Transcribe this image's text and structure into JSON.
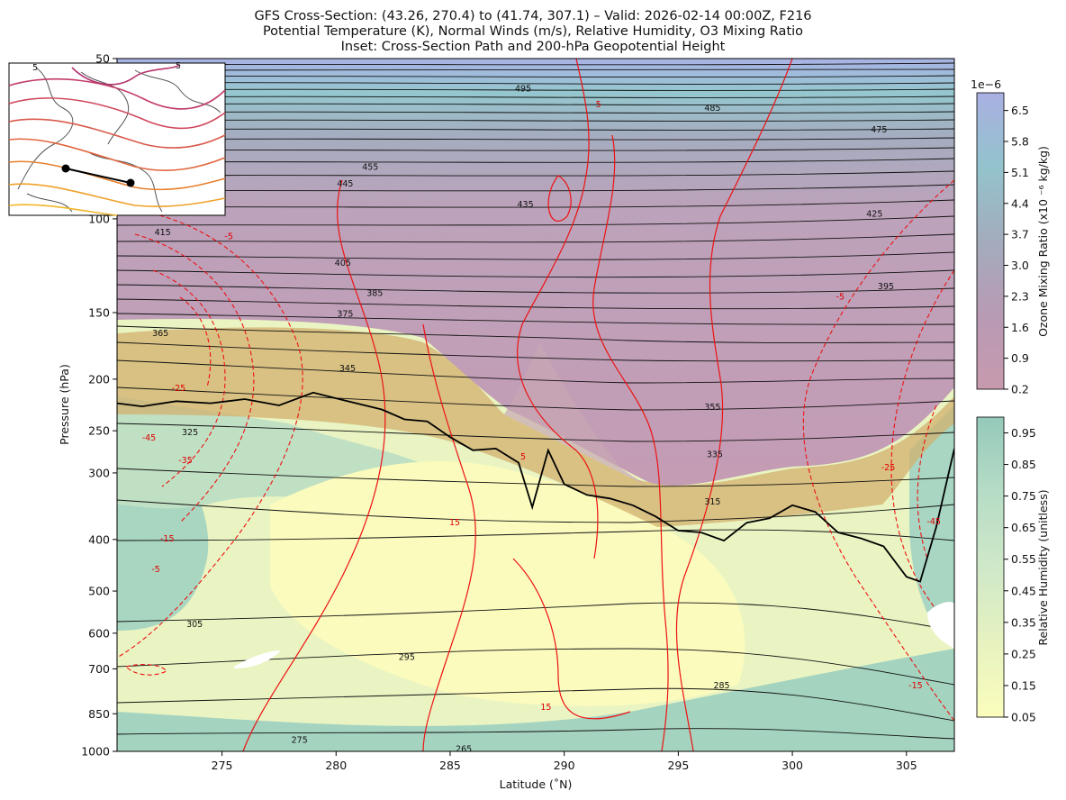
{
  "title": {
    "line1": "GFS Cross-Section: (43.26, 270.4) to (41.74, 307.1) – Valid: 2026-02-14 00:00Z, F216",
    "line2": "Potential Temperature (K), Normal Winds (m/s), Relative Humidity, O3 Mixing Ratio",
    "line3": "Inset: Cross-Section Path and 200-hPa Geopotential Height"
  },
  "chart_data": {
    "type": "heatmap",
    "xlabel": "Latitude (˚N)",
    "ylabel": "Pressure (hPa)",
    "xlim": [
      270.4,
      307.1
    ],
    "ylim": [
      1000,
      50
    ],
    "y_scale": "log",
    "x_ticks": [
      275,
      280,
      285,
      290,
      295,
      300,
      305
    ],
    "y_ticks": [
      1000,
      850,
      700,
      600,
      500,
      400,
      300,
      250,
      200,
      150,
      100,
      50
    ],
    "theta_labels": [
      {
        "value": "495",
        "x": 288.2,
        "p": 57
      },
      {
        "value": "485",
        "x": 296.5,
        "p": 62
      },
      {
        "value": "475",
        "x": 303.8,
        "p": 68
      },
      {
        "value": "455",
        "x": 281.5,
        "p": 80
      },
      {
        "value": "445",
        "x": 280.4,
        "p": 86
      },
      {
        "value": "435",
        "x": 288.3,
        "p": 94
      },
      {
        "value": "425",
        "x": 303.6,
        "p": 98
      },
      {
        "value": "415",
        "x": 272.4,
        "p": 106
      },
      {
        "value": "405",
        "x": 280.3,
        "p": 121
      },
      {
        "value": "395",
        "x": 304.1,
        "p": 134
      },
      {
        "value": "385",
        "x": 281.7,
        "p": 138
      },
      {
        "value": "375",
        "x": 280.4,
        "p": 151
      },
      {
        "value": "365",
        "x": 272.3,
        "p": 164
      },
      {
        "value": "355",
        "x": 296.5,
        "p": 226
      },
      {
        "value": "345",
        "x": 280.5,
        "p": 191
      },
      {
        "value": "335",
        "x": 296.6,
        "p": 277
      },
      {
        "value": "325",
        "x": 273.6,
        "p": 252
      },
      {
        "value": "315",
        "x": 296.5,
        "p": 340
      },
      {
        "value": "305",
        "x": 273.8,
        "p": 577
      },
      {
        "value": "295",
        "x": 283.1,
        "p": 666
      },
      {
        "value": "285",
        "x": 296.9,
        "p": 753
      },
      {
        "value": "275",
        "x": 278.4,
        "p": 953
      },
      {
        "value": "265",
        "x": 285.6,
        "p": 990
      }
    ],
    "wind_labels": [
      {
        "value": "-5",
        "x": 275.3,
        "p": 108
      },
      {
        "value": "-5",
        "x": 302.1,
        "p": 140
      },
      {
        "value": "5",
        "x": 291.5,
        "p": 61
      },
      {
        "value": "5",
        "x": 288.2,
        "p": 280
      },
      {
        "value": "-25",
        "x": 273.1,
        "p": 208
      },
      {
        "value": "-45",
        "x": 271.8,
        "p": 258
      },
      {
        "value": "-35",
        "x": 273.4,
        "p": 284
      },
      {
        "value": "-15",
        "x": 272.6,
        "p": 399
      },
      {
        "value": "-5",
        "x": 272.1,
        "p": 455
      },
      {
        "value": "15",
        "x": 285.2,
        "p": 372
      },
      {
        "value": "15",
        "x": 289.2,
        "p": 826
      },
      {
        "value": "-15",
        "x": 305.4,
        "p": 752
      },
      {
        "value": "-25",
        "x": 304.2,
        "p": 293
      },
      {
        "value": "-45",
        "x": 306.2,
        "p": 370
      }
    ],
    "tropopause": {
      "x": [
        270.4,
        271.5,
        273,
        274.5,
        276,
        277.5,
        279,
        280.5,
        282,
        283,
        284,
        285,
        286,
        287,
        288,
        288.6,
        289.3,
        290,
        291,
        292,
        293,
        294,
        295,
        296,
        297,
        298,
        299,
        300,
        301,
        302,
        303,
        304,
        305,
        305.6,
        306.3,
        307.1
      ],
      "p": [
        222,
        225,
        220,
        222,
        218,
        224,
        212,
        220,
        228,
        238,
        240,
        257,
        272,
        270,
        287,
        348,
        272,
        315,
        330,
        335,
        345,
        362,
        385,
        388,
        402,
        372,
        365,
        345,
        355,
        388,
        398,
        412,
        470,
        480,
        380,
        270
      ]
    },
    "colorbars": [
      {
        "label": "Ozone Mixing Ratio (x10 ⁻⁶ kg/kg)",
        "exponent": "1e−6",
        "ticks": [
          "6.5",
          "5.8",
          "5.1",
          "4.4",
          "3.7",
          "3.0",
          "2.3",
          "1.6",
          "0.9",
          "0.2"
        ],
        "range": [
          0.2,
          6.9
        ]
      },
      {
        "label": "Relative Humidity (unitless)",
        "ticks": [
          "0.95",
          "0.85",
          "0.75",
          "0.65",
          "0.55",
          "0.45",
          "0.35",
          "0.25",
          "0.15",
          "0.05"
        ],
        "range": [
          0.05,
          1.0
        ]
      }
    ],
    "inset": {
      "path_start": [
        270.4,
        43.26
      ],
      "path_end": [
        307.1,
        41.74
      ],
      "path_start_label": "(43.26, 270.4)",
      "path_end_label": "(41.74, 307.1)",
      "contour_level_labels": [
        "5",
        "5"
      ]
    }
  }
}
